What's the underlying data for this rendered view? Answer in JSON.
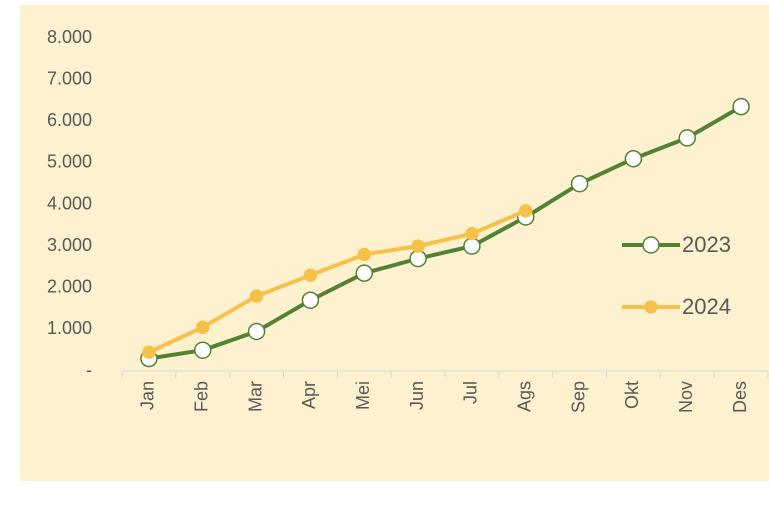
{
  "chart_data": {
    "type": "line",
    "categories": [
      "Jan",
      "Feb",
      "Mar",
      "Apr",
      "Mei",
      "Jun",
      "Jul",
      "Ags",
      "Sep",
      "Okt",
      "Nov",
      "Des"
    ],
    "series": [
      {
        "name": "2023",
        "color": "#548235",
        "marker_fill": "#ffffff",
        "values": [
          300,
          500,
          950,
          1700,
          2350,
          2700,
          3000,
          3700,
          4500,
          5100,
          5600,
          6350
        ]
      },
      {
        "name": "2024",
        "color": "#f6c14a",
        "marker_fill": "#f6c14a",
        "values": [
          450,
          1050,
          1800,
          2300,
          2800,
          3000,
          3300,
          3850,
          null,
          null,
          null,
          null
        ]
      }
    ],
    "ylim": [
      0,
      8000
    ],
    "yticks": [
      {
        "value": 0,
        "label": "-"
      },
      {
        "value": 1000,
        "label": "1.000"
      },
      {
        "value": 2000,
        "label": "2.000"
      },
      {
        "value": 3000,
        "label": "3.000"
      },
      {
        "value": 4000,
        "label": "4.000"
      },
      {
        "value": 5000,
        "label": "5.000"
      },
      {
        "value": 6000,
        "label": "6.000"
      },
      {
        "value": 7000,
        "label": "7.000"
      },
      {
        "value": 8000,
        "label": "8.000"
      }
    ],
    "grid": false,
    "legend": "right"
  }
}
